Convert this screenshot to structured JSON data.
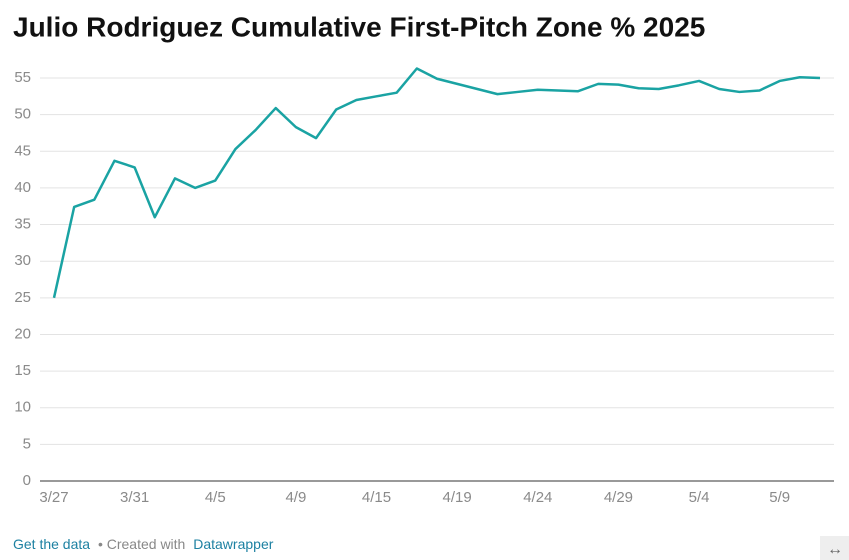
{
  "chart_data": {
    "type": "line",
    "title": "Julio Rodriguez Cumulative First-Pitch Zone % 2025",
    "categories": [
      "3/27",
      null,
      null,
      null,
      "3/31",
      null,
      null,
      null,
      "4/5",
      null,
      null,
      null,
      "4/9",
      null,
      null,
      null,
      "4/15",
      null,
      null,
      null,
      "4/19",
      null,
      null,
      null,
      "4/24",
      null,
      null,
      null,
      "4/29",
      null,
      null,
      null,
      "5/4",
      null,
      null,
      null,
      "5/9",
      null,
      null
    ],
    "values": [
      25.0,
      37.4,
      38.4,
      43.7,
      42.8,
      36.0,
      41.3,
      40.0,
      41.0,
      45.3,
      47.9,
      50.9,
      48.3,
      46.8,
      50.7,
      52.0,
      52.5,
      53.0,
      56.3,
      54.9,
      54.2,
      53.5,
      52.8,
      53.1,
      53.4,
      53.3,
      53.2,
      54.2,
      54.1,
      53.6,
      53.5,
      54.0,
      54.6,
      53.5,
      53.1,
      53.3,
      54.6,
      55.1,
      55.0
    ],
    "color": "#1aa3a3",
    "ylim": [
      0,
      57
    ],
    "yticks": [
      0,
      5,
      10,
      15,
      20,
      25,
      30,
      35,
      40,
      45,
      50,
      55
    ],
    "grid": true
  },
  "footer": {
    "get_data": "Get the data",
    "created_with": "• Created with",
    "datawrapper": "Datawrapper"
  }
}
